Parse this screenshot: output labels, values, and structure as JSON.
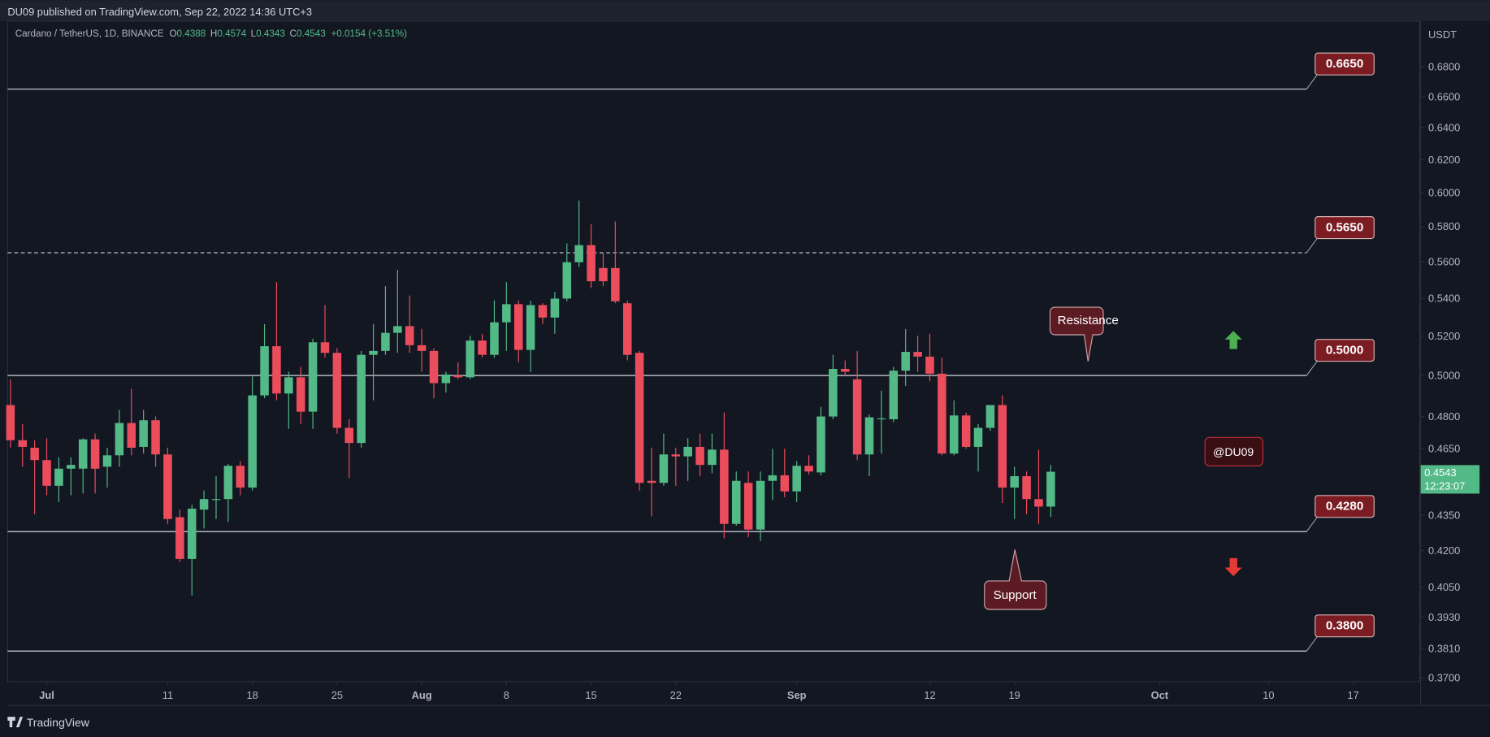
{
  "header": {
    "publisher": "DU09 published on TradingView.com, Sep 22, 2022 14:36 UTC+3",
    "symbol": "Cardano / TetherUS, 1D, BINANCE",
    "quote_labels": [
      "O",
      "H",
      "L",
      "C"
    ],
    "quote_values": [
      "0.4388",
      "0.4574",
      "0.4343",
      "0.4543"
    ],
    "change": "+0.0154 (+3.51%)",
    "currency": "USDT",
    "footer": "TradingView"
  },
  "chart_data": {
    "type": "candlestick",
    "log_scale": true,
    "grid": false,
    "up_color": "#53b987",
    "down_color": "#eb4d5c",
    "x": [
      "Jun 28",
      "Jun 29",
      "Jun 30",
      "Jul 1",
      "Jul 2",
      "Jul 3",
      "Jul 4",
      "Jul 5",
      "Jul 6",
      "Jul 7",
      "Jul 8",
      "Jul 9",
      "Jul 10",
      "Jul 11",
      "Jul 12",
      "Jul 13",
      "Jul 14",
      "Jul 15",
      "Jul 16",
      "Jul 17",
      "Jul 18",
      "Jul 19",
      "Jul 20",
      "Jul 21",
      "Jul 22",
      "Jul 23",
      "Jul 24",
      "Jul 25",
      "Jul 26",
      "Jul 27",
      "Jul 28",
      "Jul 29",
      "Jul 30",
      "Jul 31",
      "Aug 1",
      "Aug 2",
      "Aug 3",
      "Aug 4",
      "Aug 5",
      "Aug 6",
      "Aug 7",
      "Aug 8",
      "Aug 9",
      "Aug 10",
      "Aug 11",
      "Aug 12",
      "Aug 13",
      "Aug 14",
      "Aug 15",
      "Aug 16",
      "Aug 17",
      "Aug 18",
      "Aug 19",
      "Aug 20",
      "Aug 21",
      "Aug 22",
      "Aug 23",
      "Aug 24",
      "Aug 25",
      "Aug 26",
      "Aug 27",
      "Aug 28",
      "Aug 29",
      "Aug 30",
      "Aug 31",
      "Sep 1",
      "Sep 2",
      "Sep 3",
      "Sep 4",
      "Sep 5",
      "Sep 6",
      "Sep 7",
      "Sep 8",
      "Sep 9",
      "Sep 10",
      "Sep 11",
      "Sep 12",
      "Sep 13",
      "Sep 14",
      "Sep 15",
      "Sep 16",
      "Sep 17",
      "Sep 18",
      "Sep 19",
      "Sep 20",
      "Sep 21",
      "Sep 22"
    ],
    "open": [
      0.4855,
      0.4688,
      0.4653,
      0.4596,
      0.448,
      0.4557,
      0.4557,
      0.4692,
      0.4566,
      0.4618,
      0.4769,
      0.4657,
      0.4782,
      0.4622,
      0.4342,
      0.4165,
      0.4375,
      0.4417,
      0.4421,
      0.457,
      0.4472,
      0.4902,
      0.5148,
      0.4911,
      0.4991,
      0.4823,
      0.5168,
      0.5114,
      0.4746,
      0.4675,
      0.5104,
      0.5124,
      0.5217,
      0.5252,
      0.5153,
      0.5124,
      0.4962,
      0.5,
      0.4991,
      0.5177,
      0.5104,
      0.5272,
      0.5368,
      0.5129,
      0.5363,
      0.5297,
      0.5398,
      0.5597,
      0.5693,
      0.5565,
      0.5565,
      0.5373,
      0.5114,
      0.4502,
      0.4493,
      0.4622,
      0.4613,
      0.4657,
      0.4574,
      0.4644,
      0.4313,
      0.4493,
      0.4289,
      0.4502,
      0.4527,
      0.4455,
      0.457,
      0.454,
      0.48,
      0.5033,
      0.4981,
      0.4622,
      0.4787,
      0.4787,
      0.5024,
      0.5119,
      0.5095,
      0.5009,
      0.4626,
      0.4805,
      0.4657,
      0.4746,
      0.4855,
      0.4472,
      0.4523,
      0.4421,
      0.4388
    ],
    "high": [
      0.4981,
      0.4764,
      0.4688,
      0.4697,
      0.4609,
      0.4609,
      0.4697,
      0.4719,
      0.4653,
      0.4832,
      0.4934,
      0.4832,
      0.48,
      0.4653,
      0.4375,
      0.4396,
      0.4459,
      0.4523,
      0.4579,
      0.4592,
      0.4995,
      0.5262,
      0.5487,
      0.5019,
      0.5043,
      0.5187,
      0.5363,
      0.5138,
      0.4787,
      0.5124,
      0.5262,
      0.5465,
      0.5555,
      0.5414,
      0.5237,
      0.5138,
      0.5019,
      0.5066,
      0.5202,
      0.5212,
      0.5388,
      0.5487,
      0.5388,
      0.5388,
      0.5373,
      0.5434,
      0.5703,
      0.5952,
      0.5813,
      0.565,
      0.5829,
      0.5388,
      0.5124,
      0.4653,
      0.4719,
      0.4653,
      0.4697,
      0.4719,
      0.4719,
      0.4819,
      0.4544,
      0.4544,
      0.4544,
      0.4648,
      0.4648,
      0.4592,
      0.4618,
      0.4846,
      0.5104,
      0.5076,
      0.5124,
      0.4809,
      0.4925,
      0.5043,
      0.5237,
      0.5202,
      0.5212,
      0.509,
      0.4878,
      0.4819,
      0.4764,
      0.4855,
      0.4902,
      0.4566,
      0.4544,
      0.4644,
      0.4574
    ],
    "low": [
      0.4653,
      0.4566,
      0.4355,
      0.4438,
      0.4408,
      0.4438,
      0.4446,
      0.4446,
      0.4472,
      0.4566,
      0.4618,
      0.4626,
      0.4566,
      0.4313,
      0.4153,
      0.4016,
      0.4293,
      0.4334,
      0.4321,
      0.4438,
      0.4459,
      0.4888,
      0.4878,
      0.4741,
      0.4764,
      0.4741,
      0.509,
      0.4719,
      0.4514,
      0.4653,
      0.4878,
      0.5104,
      0.5114,
      0.5114,
      0.5019,
      0.4888,
      0.4916,
      0.4981,
      0.4981,
      0.509,
      0.509,
      0.5124,
      0.5066,
      0.5019,
      0.5262,
      0.5212,
      0.5383,
      0.557,
      0.5455,
      0.5465,
      0.5373,
      0.5076,
      0.4459,
      0.4346,
      0.448,
      0.448,
      0.4502,
      0.4523,
      0.4536,
      0.4252,
      0.4305,
      0.4256,
      0.424,
      0.4417,
      0.4429,
      0.4408,
      0.4531,
      0.4527,
      0.4787,
      0.4995,
      0.4596,
      0.4523,
      0.4626,
      0.4773,
      0.4948,
      0.5019,
      0.4972,
      0.4618,
      0.4618,
      0.4648,
      0.4544,
      0.4732,
      0.4404,
      0.4334,
      0.4355,
      0.4313,
      0.4343
    ],
    "close": [
      0.4688,
      0.4657,
      0.4596,
      0.448,
      0.4557,
      0.4574,
      0.4692,
      0.4557,
      0.4618,
      0.4769,
      0.4653,
      0.4782,
      0.4622,
      0.4334,
      0.4165,
      0.4379,
      0.4421,
      0.4421,
      0.457,
      0.4472,
      0.4902,
      0.5148,
      0.4911,
      0.4991,
      0.4823,
      0.5168,
      0.5114,
      0.4746,
      0.4675,
      0.5104,
      0.5124,
      0.5217,
      0.5252,
      0.5153,
      0.5124,
      0.4962,
      0.5005,
      0.4991,
      0.5177,
      0.5104,
      0.5272,
      0.5368,
      0.5129,
      0.5363,
      0.5297,
      0.5398,
      0.5597,
      0.5693,
      0.5492,
      0.5492,
      0.5383,
      0.5104,
      0.4493,
      0.4493,
      0.4622,
      0.4613,
      0.4657,
      0.4574,
      0.4644,
      0.4313,
      0.4502,
      0.4289,
      0.4502,
      0.4527,
      0.4455,
      0.457,
      0.4544,
      0.48,
      0.5033,
      0.5019,
      0.4622,
      0.4796,
      0.4791,
      0.5024,
      0.5119,
      0.5095,
      0.5009,
      0.4626,
      0.4805,
      0.4657,
      0.4746,
      0.4855,
      0.4472,
      0.4523,
      0.4421,
      0.4388,
      0.4543
    ],
    "ylim": [
      0.3686,
      0.7116
    ],
    "yticks": [
      {
        "value": 0.68,
        "label": "0.6800"
      },
      {
        "value": 0.66,
        "label": "0.6600"
      },
      {
        "value": 0.64,
        "label": "0.6400"
      },
      {
        "value": 0.62,
        "label": "0.6200"
      },
      {
        "value": 0.6,
        "label": "0.6000"
      },
      {
        "value": 0.58,
        "label": "0.5800"
      },
      {
        "value": 0.56,
        "label": "0.5600"
      },
      {
        "value": 0.54,
        "label": "0.5400"
      },
      {
        "value": 0.52,
        "label": "0.5200"
      },
      {
        "value": 0.5,
        "label": "0.5000"
      },
      {
        "value": 0.48,
        "label": "0.4800"
      },
      {
        "value": 0.465,
        "label": "0.4650"
      },
      {
        "value": 0.435,
        "label": "0.4350"
      },
      {
        "value": 0.42,
        "label": "0.4200"
      },
      {
        "value": 0.405,
        "label": "0.4050"
      },
      {
        "value": 0.393,
        "label": "0.3930"
      },
      {
        "value": 0.381,
        "label": "0.3810"
      },
      {
        "value": 0.37,
        "label": "0.3700"
      }
    ],
    "xticks": [
      {
        "value": "Jul 1",
        "label": "Jul"
      },
      {
        "value": "Jul 11",
        "label": "11"
      },
      {
        "value": "Jul 18",
        "label": "18"
      },
      {
        "value": "Jul 25",
        "label": "25"
      },
      {
        "value": "Aug 1",
        "label": "Aug"
      },
      {
        "value": "Aug 8",
        "label": "8"
      },
      {
        "value": "Aug 15",
        "label": "15"
      },
      {
        "value": "Aug 22",
        "label": "22"
      },
      {
        "value": "Sep 1",
        "label": "Sep"
      },
      {
        "value": "Sep 12",
        "label": "12"
      },
      {
        "value": "Sep 19",
        "label": "19"
      },
      {
        "value": "Oct 1",
        "label": "Oct"
      },
      {
        "value": "Oct 10",
        "label": "10"
      },
      {
        "value": "Oct 17",
        "label": "17"
      }
    ],
    "levels": {
      "values": [
        0.665,
        0.565,
        0.5,
        0.428,
        0.38
      ],
      "value_labels": [
        "0.6650",
        "0.5650",
        "0.5000",
        "0.4280",
        "0.3800"
      ],
      "dashed": [
        false,
        true,
        false,
        false,
        false
      ]
    },
    "price_tag": [
      "0.4543",
      "12:23:07"
    ],
    "annotations": [
      "Resistance",
      "Support",
      "@DU09"
    ]
  }
}
